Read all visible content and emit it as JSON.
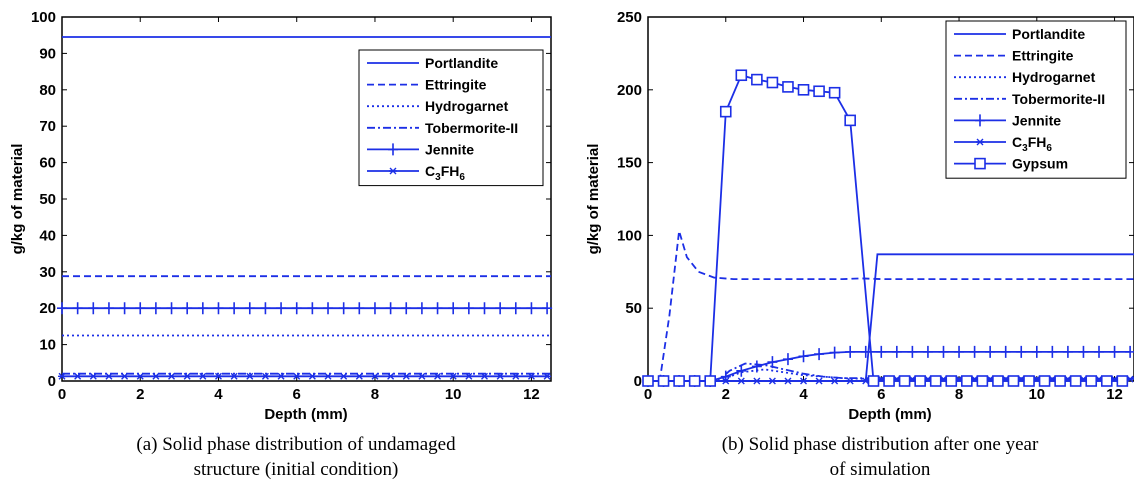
{
  "chart_data": [
    {
      "type": "line",
      "xlabel": "Depth (mm)",
      "ylabel": "g/kg of material",
      "xlim": [
        0,
        12.5
      ],
      "ylim": [
        0,
        100
      ],
      "xticks": [
        0,
        2,
        4,
        6,
        8,
        10,
        12
      ],
      "yticks": [
        0,
        10,
        20,
        30,
        40,
        50,
        60,
        70,
        80,
        90,
        100
      ],
      "legend_position": "top-right",
      "caption": [
        "(a)  Solid phase distribution of undamaged",
        "structure (initial condition)"
      ],
      "color": "#1c2fe6",
      "series": [
        {
          "name": "Portlandite",
          "style": "solid",
          "x": [
            0,
            12.5
          ],
          "y": [
            94.5,
            94.5
          ]
        },
        {
          "name": "Ettringite",
          "style": "dashed",
          "x": [
            0,
            12.5
          ],
          "y": [
            28.8,
            28.8
          ]
        },
        {
          "name": "Hydrogarnet",
          "style": "dotted",
          "x": [
            0,
            12.5
          ],
          "y": [
            12.5,
            12.5
          ]
        },
        {
          "name": "Tobermorite-II",
          "style": "dashdot",
          "x": [
            0,
            12.5
          ],
          "y": [
            2.0,
            2.0
          ]
        },
        {
          "name": "Jennite",
          "style": "solid-plus",
          "x": [
            0,
            0.4,
            0.8,
            1.2,
            1.6,
            2.0,
            2.4,
            2.8,
            3.2,
            3.6,
            4.0,
            4.4,
            4.8,
            5.2,
            5.6,
            6.0,
            6.4,
            6.8,
            7.2,
            7.6,
            8.0,
            8.4,
            8.8,
            9.2,
            9.6,
            10.0,
            10.4,
            10.8,
            11.2,
            11.6,
            12.0,
            12.4
          ],
          "y": [
            20,
            20,
            20,
            20,
            20,
            20,
            20,
            20,
            20,
            20,
            20,
            20,
            20,
            20,
            20,
            20,
            20,
            20,
            20,
            20,
            20,
            20,
            20,
            20,
            20,
            20,
            20,
            20,
            20,
            20,
            20,
            20
          ]
        },
        {
          "name": "C3FH6",
          "style": "solid-star",
          "x": [
            0,
            0.4,
            0.8,
            1.2,
            1.6,
            2.0,
            2.4,
            2.8,
            3.2,
            3.6,
            4.0,
            4.4,
            4.8,
            5.2,
            5.6,
            6.0,
            6.4,
            6.8,
            7.2,
            7.6,
            8.0,
            8.4,
            8.8,
            9.2,
            9.6,
            10.0,
            10.4,
            10.8,
            11.2,
            11.6,
            12.0,
            12.4
          ],
          "y": [
            1.3,
            1.3,
            1.3,
            1.3,
            1.3,
            1.3,
            1.3,
            1.3,
            1.3,
            1.3,
            1.3,
            1.3,
            1.3,
            1.3,
            1.3,
            1.3,
            1.3,
            1.3,
            1.3,
            1.3,
            1.3,
            1.3,
            1.3,
            1.3,
            1.3,
            1.3,
            1.3,
            1.3,
            1.3,
            1.3,
            1.3,
            1.3
          ]
        }
      ]
    },
    {
      "type": "line",
      "xlabel": "Depth (mm)",
      "ylabel": "g/kg of material",
      "xlim": [
        0,
        12.5
      ],
      "ylim": [
        0,
        250
      ],
      "xticks": [
        0,
        2,
        4,
        6,
        8,
        10,
        12
      ],
      "yticks": [
        0,
        50,
        100,
        150,
        200,
        250
      ],
      "legend_position": "top-right",
      "caption": [
        "(b)  Solid phase distribution after one year",
        "of simulation"
      ],
      "color": "#1c2fe6",
      "series": [
        {
          "name": "Portlandite",
          "style": "solid",
          "x": [
            0,
            5.6,
            5.9,
            12.5
          ],
          "y": [
            0,
            0,
            87,
            87
          ]
        },
        {
          "name": "Ettringite",
          "style": "dashed",
          "x": [
            0,
            0.3,
            0.55,
            0.8,
            1.0,
            1.3,
            1.7,
            2.2,
            3.0,
            4.0,
            5.0,
            5.5,
            6.0,
            7.0,
            8.0,
            9.0,
            10.0,
            11.0,
            12.0,
            12.5
          ],
          "y": [
            0,
            0,
            45,
            103,
            85,
            75,
            71,
            70,
            70,
            70,
            70,
            70.5,
            70,
            70,
            70,
            70,
            70,
            70,
            70,
            70
          ]
        },
        {
          "name": "Hydrogarnet",
          "style": "dotted",
          "x": [
            0,
            1.8,
            2.4,
            3.0,
            4.0,
            5.0,
            5.5,
            12.5
          ],
          "y": [
            0,
            0,
            6,
            8,
            4,
            2,
            1.5,
            1.5
          ]
        },
        {
          "name": "Tobermorite-II",
          "style": "dashdot",
          "x": [
            0,
            1.8,
            2.1,
            2.5,
            3.0,
            3.5,
            4.0,
            4.5,
            5.0,
            5.5,
            6.0,
            12.5
          ],
          "y": [
            0,
            0,
            7,
            12,
            11,
            8,
            5,
            3,
            2,
            2,
            2,
            2
          ]
        },
        {
          "name": "Jennite",
          "style": "solid-plus",
          "x": [
            0,
            0.4,
            0.8,
            1.2,
            1.6,
            2.0,
            2.4,
            2.8,
            3.2,
            3.6,
            4.0,
            4.4,
            4.8,
            5.2,
            5.6,
            6.0,
            6.4,
            6.8,
            7.2,
            7.6,
            8.0,
            8.4,
            8.8,
            9.2,
            9.6,
            10.0,
            10.4,
            10.8,
            11.2,
            11.6,
            12.0,
            12.4
          ],
          "y": [
            0,
            0,
            0,
            0,
            0,
            3,
            7,
            10,
            13,
            15,
            17,
            18.5,
            19.5,
            20,
            20,
            20,
            20,
            20,
            20,
            20,
            20,
            20,
            20,
            20,
            20,
            20,
            20,
            20,
            20,
            20,
            20,
            20
          ]
        },
        {
          "name": "C3FH6",
          "style": "solid-star",
          "x": [
            0,
            0.4,
            0.8,
            1.2,
            1.6,
            2.0,
            2.4,
            2.8,
            3.2,
            3.6,
            4.0,
            4.4,
            4.8,
            5.2,
            5.6,
            6.0,
            6.4,
            6.8,
            7.2,
            7.6,
            8.0,
            8.4,
            8.8,
            9.2,
            9.6,
            10.0,
            10.4,
            10.8,
            11.2,
            11.6,
            12.0,
            12.4
          ],
          "y": [
            0,
            0,
            0,
            0,
            0,
            0,
            0,
            0,
            0,
            0,
            0,
            0,
            0,
            0,
            0,
            1.3,
            1.3,
            1.3,
            1.3,
            1.3,
            1.3,
            1.3,
            1.3,
            1.3,
            1.3,
            1.3,
            1.3,
            1.3,
            1.3,
            1.3,
            1.3,
            1.3
          ]
        },
        {
          "name": "Gypsum",
          "style": "solid-square",
          "x": [
            0,
            0.4,
            0.8,
            1.2,
            1.6,
            2.0,
            2.4,
            2.8,
            3.2,
            3.6,
            4.0,
            4.4,
            4.8,
            5.2,
            5.8,
            6.2,
            6.6,
            7.0,
            7.4,
            7.8,
            8.2,
            8.6,
            9.0,
            9.4,
            9.8,
            10.2,
            10.6,
            11.0,
            11.4,
            11.8,
            12.2
          ],
          "y": [
            0,
            0,
            0,
            0,
            0,
            185,
            210,
            207,
            205,
            202,
            200,
            199,
            198,
            179,
            0,
            0,
            0,
            0,
            0,
            0,
            0,
            0,
            0,
            0,
            0,
            0,
            0,
            0,
            0,
            0,
            0
          ]
        }
      ]
    }
  ]
}
